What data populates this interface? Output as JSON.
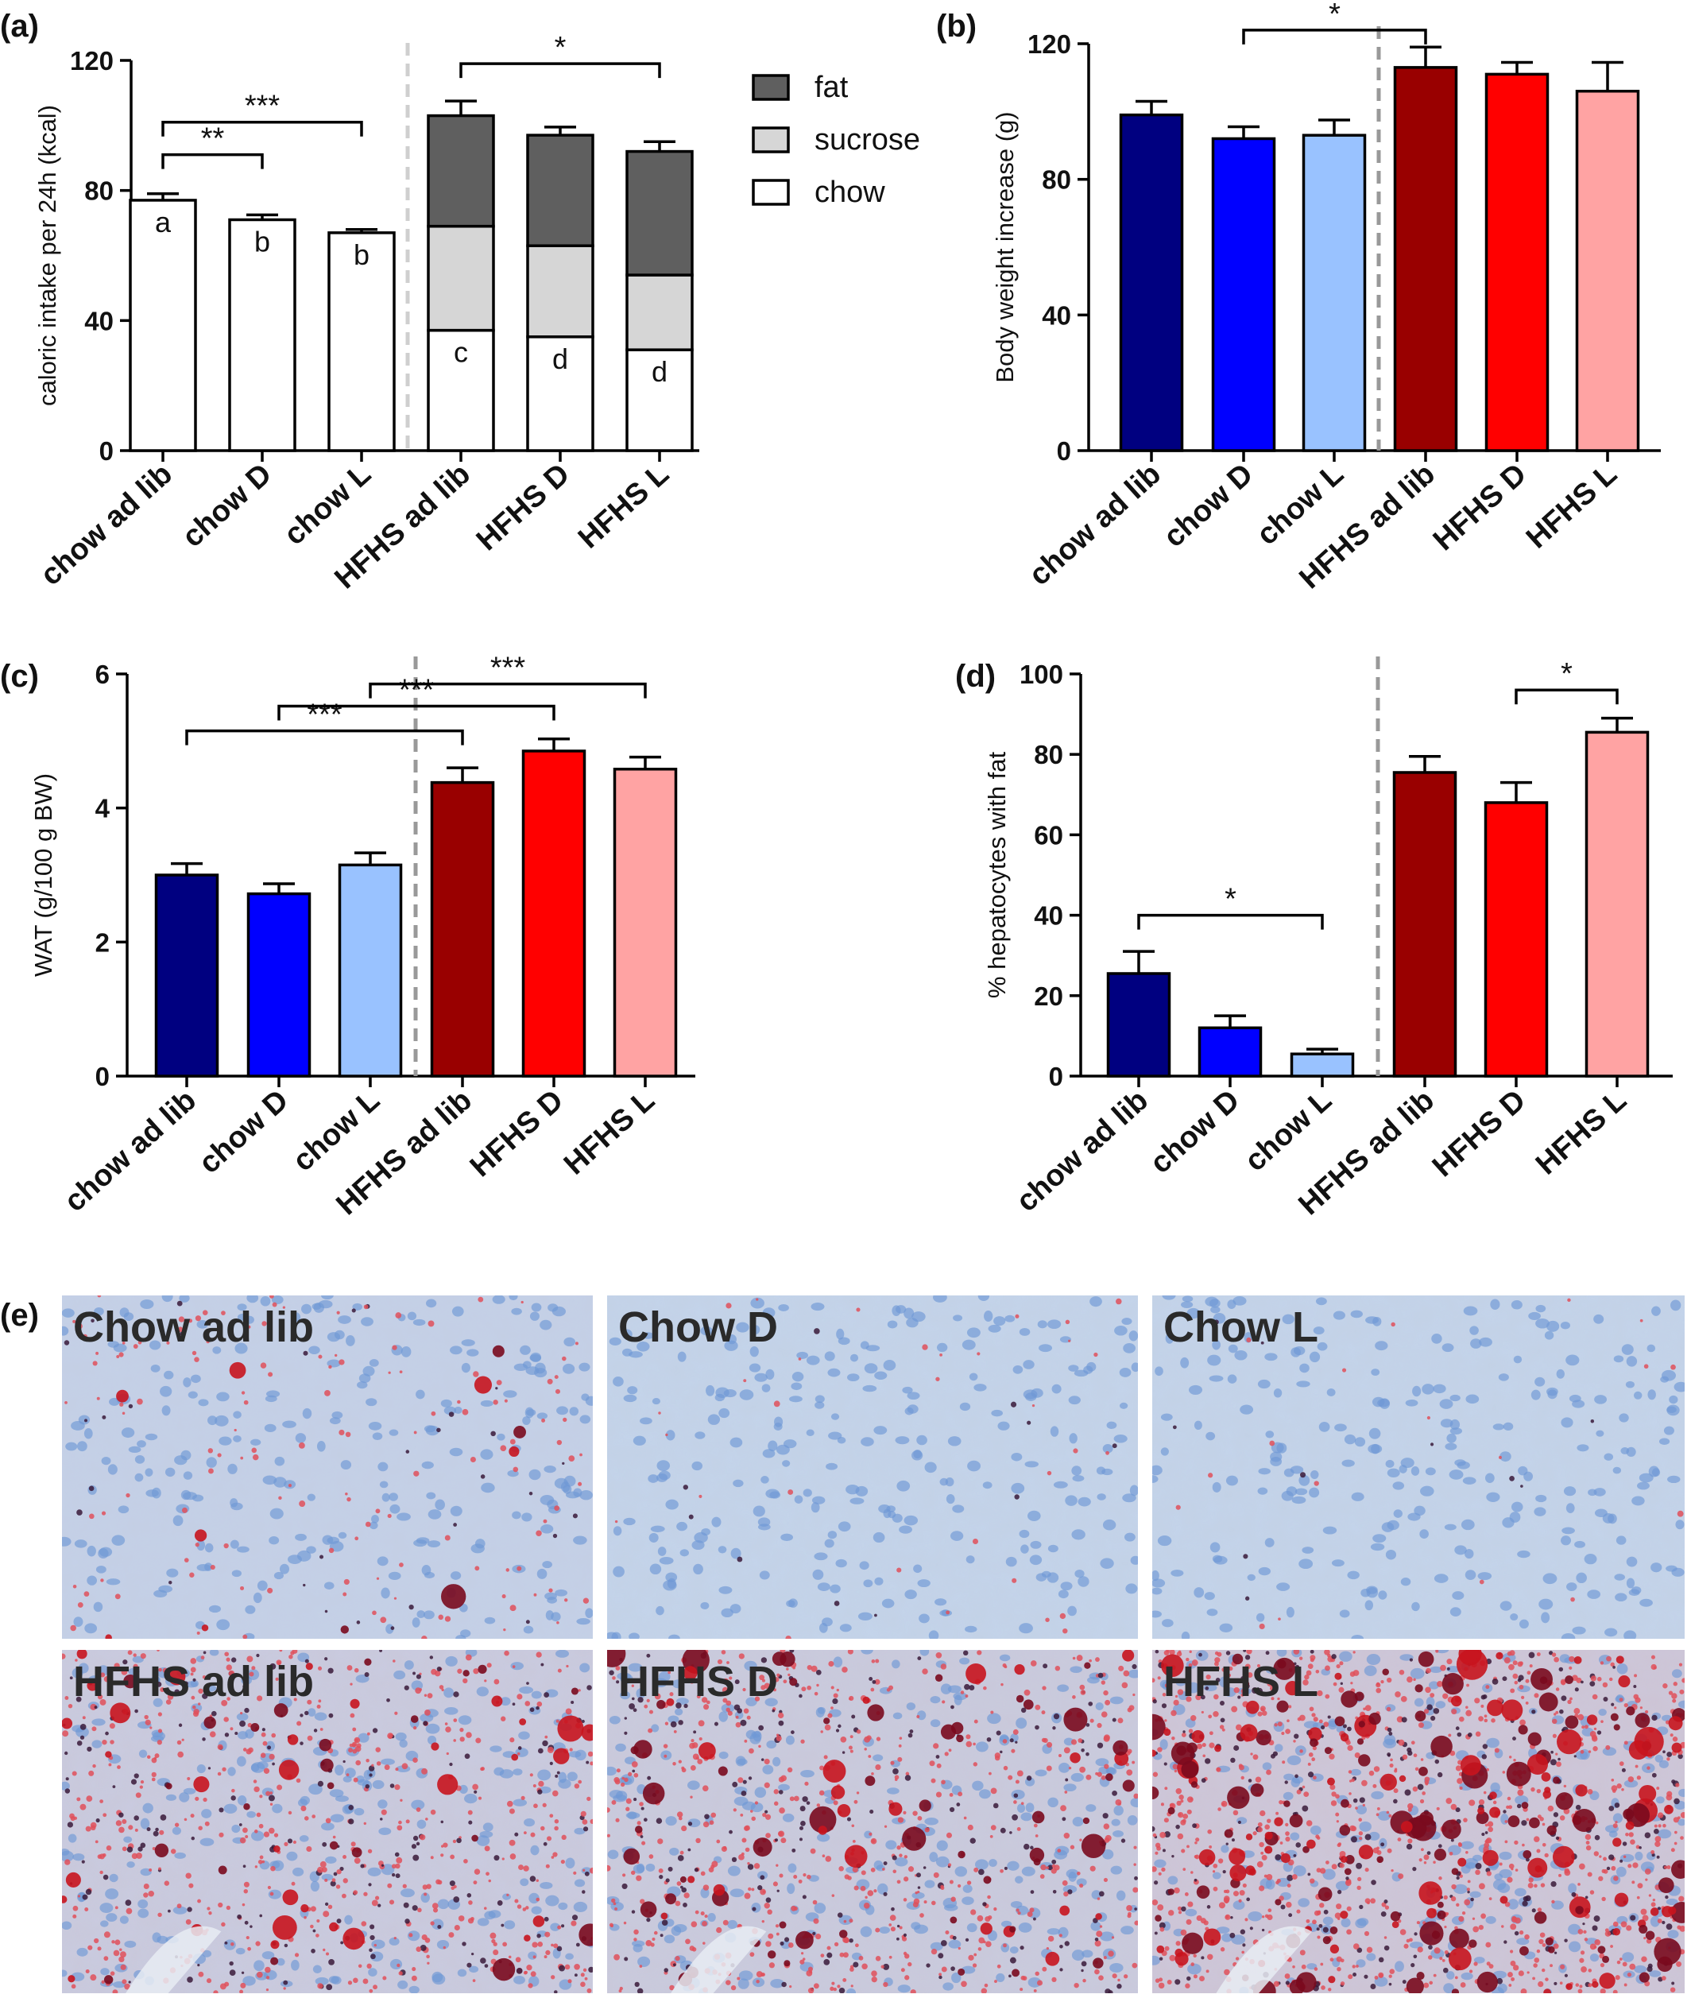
{
  "panel_labels": {
    "a": "(a)",
    "b": "(b)",
    "c": "(c)",
    "d": "(d)",
    "e": "(e)"
  },
  "chart_data": [
    {
      "id": "a",
      "type": "bar",
      "stacked": true,
      "ylabel": "caloric intake per 24h (kcal)",
      "ylim": [
        0,
        120
      ],
      "yticks": [
        0,
        40,
        80,
        120
      ],
      "categories": [
        "chow ad lib",
        "chow D",
        "chow L",
        "HFHS ad lib",
        "HFHS D",
        "HFHS L"
      ],
      "series": [
        {
          "name": "chow",
          "color": "#ffffff",
          "values": [
            77,
            71,
            67,
            37,
            35,
            31
          ],
          "errors": [
            2,
            1.5,
            1,
            2,
            1.5,
            1.5
          ]
        },
        {
          "name": "sucrose",
          "color": "#d6d6d6",
          "values": [
            0,
            0,
            0,
            32,
            28,
            23
          ],
          "errors": [
            0,
            0,
            0,
            3.5,
            2.5,
            2.5
          ]
        },
        {
          "name": "fat",
          "color": "#5f5f5f",
          "values": [
            0,
            0,
            0,
            34,
            34,
            38
          ],
          "errors": [
            0,
            0,
            0,
            4.5,
            2.5,
            3
          ]
        }
      ],
      "legend": [
        "fat",
        "sucrose",
        "chow"
      ],
      "bar_letters": [
        [
          "a"
        ],
        [
          "b"
        ],
        [
          "b"
        ],
        [
          "c"
        ],
        [
          "d"
        ],
        [
          "d"
        ]
      ],
      "divider_after": 2,
      "significance": [
        {
          "from": 0,
          "to": 1,
          "y": 91,
          "label": "**"
        },
        {
          "from": 0,
          "to": 2,
          "y": 101,
          "label": "***"
        },
        {
          "from": 3,
          "to": 5,
          "y": 119,
          "label": "*"
        }
      ]
    },
    {
      "id": "b",
      "type": "bar",
      "ylabel": "Body weight increase (g)",
      "ylim": [
        0,
        120
      ],
      "yticks": [
        0,
        40,
        80,
        120
      ],
      "categories": [
        "chow ad lib",
        "chow D",
        "chow L",
        "HFHS ad lib",
        "HFHS D",
        "HFHS L"
      ],
      "values": [
        99,
        92,
        93,
        113,
        111,
        106
      ],
      "errors": [
        4,
        3.5,
        4.5,
        6,
        3.5,
        8.5
      ],
      "colors": [
        "#000080",
        "#0000ff",
        "#99c2ff",
        "#990000",
        "#ff0000",
        "#ffa3a3"
      ],
      "divider_after": 2,
      "significance": [
        {
          "from": 1,
          "to": 3,
          "y": 124,
          "label": "*"
        }
      ]
    },
    {
      "id": "c",
      "type": "bar",
      "ylabel": "WAT (g/100 g BW)",
      "ylim": [
        0,
        6
      ],
      "yticks": [
        0,
        2,
        4,
        6
      ],
      "categories": [
        "chow ad lib",
        "chow D",
        "chow L",
        "HFHS ad lib",
        "HFHS D",
        "HFHS L"
      ],
      "values": [
        3.0,
        2.72,
        3.15,
        4.38,
        4.85,
        4.58
      ],
      "errors": [
        0.17,
        0.15,
        0.18,
        0.22,
        0.18,
        0.18
      ],
      "colors": [
        "#000080",
        "#0000ff",
        "#99c2ff",
        "#990000",
        "#ff0000",
        "#ffa3a3"
      ],
      "divider_after": 2,
      "significance": [
        {
          "from": 0,
          "to": 3,
          "y": 5.15,
          "label": "***"
        },
        {
          "from": 1,
          "to": 4,
          "y": 5.52,
          "label": "***"
        },
        {
          "from": 2,
          "to": 5,
          "y": 5.85,
          "label": "***"
        }
      ]
    },
    {
      "id": "d",
      "type": "bar",
      "ylabel": "% hepatocytes with fat",
      "ylim": [
        0,
        100
      ],
      "yticks": [
        0,
        20,
        40,
        60,
        80,
        100
      ],
      "categories": [
        "chow ad lib",
        "chow D",
        "chow L",
        "HFHS ad lib",
        "HFHS D",
        "HFHS L"
      ],
      "values": [
        25.5,
        12,
        5.5,
        75.5,
        68,
        85.5
      ],
      "errors": [
        5.5,
        3,
        1.2,
        4,
        5,
        3.5
      ],
      "colors": [
        "#000080",
        "#0000ff",
        "#99c2ff",
        "#990000",
        "#ff0000",
        "#ffa3a3"
      ],
      "divider_after": 2,
      "significance": [
        {
          "from": 0,
          "to": 2,
          "y": 40,
          "label": "*"
        },
        {
          "from": 4,
          "to": 5,
          "y": 96,
          "label": "*"
        }
      ]
    }
  ],
  "micrographs": [
    {
      "title": "Chow ad lib",
      "stain": 0.12,
      "droplets": 0.05
    },
    {
      "title": "Chow D",
      "stain": 0.03,
      "droplets": 0.0
    },
    {
      "title": "Chow L",
      "stain": 0.02,
      "droplets": 0.0
    },
    {
      "title": "HFHS ad lib",
      "stain": 0.55,
      "droplets": 0.25
    },
    {
      "title": "HFHS D",
      "stain": 0.6,
      "droplets": 0.35
    },
    {
      "title": "HFHS L",
      "stain": 0.9,
      "droplets": 0.95
    }
  ]
}
